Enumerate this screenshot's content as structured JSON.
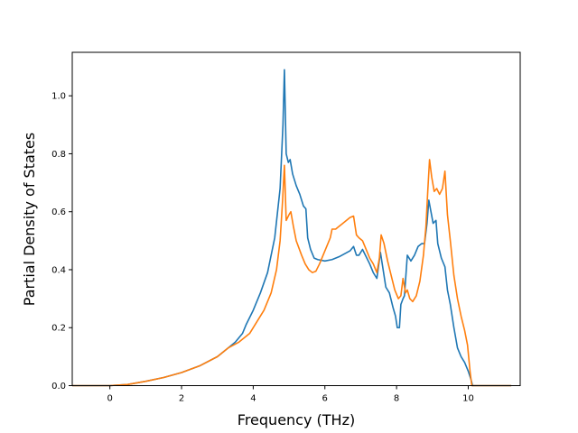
{
  "chart_data": {
    "type": "line",
    "title": "",
    "xlabel": "Frequency (THz)",
    "ylabel": "Partial Density of States",
    "xlim": [
      -1.05,
      11.45
    ],
    "ylim": [
      0,
      1.15
    ],
    "xticks": [
      0,
      2,
      4,
      6,
      8,
      10
    ],
    "xtick_labels": [
      "0",
      "2",
      "4",
      "6",
      "8",
      "10"
    ],
    "yticks": [
      0.0,
      0.2,
      0.4,
      0.6,
      0.8,
      1.0
    ],
    "ytick_labels": [
      "0.0",
      "0.2",
      "0.4",
      "0.6",
      "0.8",
      "1.0"
    ],
    "grid": false,
    "legend": "none",
    "series": [
      {
        "color": "#1f77b4",
        "points": [
          [
            -1.05,
            0
          ],
          [
            0,
            0
          ],
          [
            0.5,
            0.004
          ],
          [
            1,
            0.015
          ],
          [
            1.5,
            0.028
          ],
          [
            2,
            0.045
          ],
          [
            2.5,
            0.068
          ],
          [
            3,
            0.1
          ],
          [
            3.3,
            0.13
          ],
          [
            3.5,
            0.15
          ],
          [
            3.7,
            0.18
          ],
          [
            3.8,
            0.21
          ],
          [
            4,
            0.26
          ],
          [
            4.2,
            0.32
          ],
          [
            4.4,
            0.39
          ],
          [
            4.6,
            0.51
          ],
          [
            4.75,
            0.68
          ],
          [
            4.83,
            0.9
          ],
          [
            4.87,
            1.09
          ],
          [
            4.92,
            0.8
          ],
          [
            4.98,
            0.77
          ],
          [
            5.03,
            0.78
          ],
          [
            5.1,
            0.73
          ],
          [
            5.2,
            0.69
          ],
          [
            5.3,
            0.66
          ],
          [
            5.4,
            0.62
          ],
          [
            5.47,
            0.61
          ],
          [
            5.52,
            0.51
          ],
          [
            5.6,
            0.47
          ],
          [
            5.7,
            0.44
          ],
          [
            5.8,
            0.435
          ],
          [
            6,
            0.43
          ],
          [
            6.2,
            0.435
          ],
          [
            6.4,
            0.445
          ],
          [
            6.55,
            0.455
          ],
          [
            6.7,
            0.465
          ],
          [
            6.8,
            0.48
          ],
          [
            6.88,
            0.45
          ],
          [
            6.95,
            0.45
          ],
          [
            7.05,
            0.47
          ],
          [
            7.15,
            0.445
          ],
          [
            7.25,
            0.42
          ],
          [
            7.35,
            0.39
          ],
          [
            7.45,
            0.37
          ],
          [
            7.55,
            0.46
          ],
          [
            7.6,
            0.42
          ],
          [
            7.7,
            0.34
          ],
          [
            7.8,
            0.32
          ],
          [
            7.9,
            0.27
          ],
          [
            7.97,
            0.24
          ],
          [
            8.02,
            0.2
          ],
          [
            8.08,
            0.2
          ],
          [
            8.12,
            0.28
          ],
          [
            8.18,
            0.3
          ],
          [
            8.22,
            0.31
          ],
          [
            8.3,
            0.45
          ],
          [
            8.4,
            0.43
          ],
          [
            8.5,
            0.45
          ],
          [
            8.6,
            0.48
          ],
          [
            8.7,
            0.49
          ],
          [
            8.78,
            0.49
          ],
          [
            8.85,
            0.56
          ],
          [
            8.9,
            0.64
          ],
          [
            8.96,
            0.6
          ],
          [
            9.02,
            0.56
          ],
          [
            9.1,
            0.57
          ],
          [
            9.15,
            0.49
          ],
          [
            9.25,
            0.44
          ],
          [
            9.35,
            0.41
          ],
          [
            9.42,
            0.33
          ],
          [
            9.5,
            0.28
          ],
          [
            9.6,
            0.2
          ],
          [
            9.7,
            0.13
          ],
          [
            9.8,
            0.1
          ],
          [
            9.9,
            0.08
          ],
          [
            10.0,
            0.05
          ],
          [
            10.08,
            0.02
          ],
          [
            10.12,
            0
          ],
          [
            11.2,
            0
          ]
        ]
      },
      {
        "color": "#ff7f0e",
        "points": [
          [
            -1.05,
            0
          ],
          [
            0,
            0
          ],
          [
            0.5,
            0.004
          ],
          [
            1,
            0.015
          ],
          [
            1.5,
            0.028
          ],
          [
            2,
            0.045
          ],
          [
            2.5,
            0.068
          ],
          [
            3,
            0.1
          ],
          [
            3.3,
            0.13
          ],
          [
            3.6,
            0.15
          ],
          [
            3.9,
            0.18
          ],
          [
            4.1,
            0.22
          ],
          [
            4.3,
            0.26
          ],
          [
            4.5,
            0.32
          ],
          [
            4.65,
            0.4
          ],
          [
            4.75,
            0.5
          ],
          [
            4.82,
            0.64
          ],
          [
            4.87,
            0.76
          ],
          [
            4.92,
            0.57
          ],
          [
            5.0,
            0.59
          ],
          [
            5.05,
            0.6
          ],
          [
            5.12,
            0.55
          ],
          [
            5.2,
            0.5
          ],
          [
            5.35,
            0.45
          ],
          [
            5.45,
            0.42
          ],
          [
            5.55,
            0.4
          ],
          [
            5.65,
            0.39
          ],
          [
            5.75,
            0.395
          ],
          [
            5.85,
            0.42
          ],
          [
            5.95,
            0.45
          ],
          [
            6.05,
            0.48
          ],
          [
            6.15,
            0.51
          ],
          [
            6.2,
            0.54
          ],
          [
            6.3,
            0.54
          ],
          [
            6.4,
            0.55
          ],
          [
            6.5,
            0.56
          ],
          [
            6.6,
            0.57
          ],
          [
            6.7,
            0.58
          ],
          [
            6.8,
            0.585
          ],
          [
            6.88,
            0.52
          ],
          [
            6.95,
            0.51
          ],
          [
            7.05,
            0.5
          ],
          [
            7.15,
            0.47
          ],
          [
            7.25,
            0.44
          ],
          [
            7.35,
            0.42
          ],
          [
            7.45,
            0.39
          ],
          [
            7.52,
            0.44
          ],
          [
            7.57,
            0.52
          ],
          [
            7.65,
            0.49
          ],
          [
            7.75,
            0.43
          ],
          [
            7.85,
            0.38
          ],
          [
            7.95,
            0.33
          ],
          [
            8.05,
            0.3
          ],
          [
            8.12,
            0.31
          ],
          [
            8.18,
            0.37
          ],
          [
            8.25,
            0.32
          ],
          [
            8.3,
            0.33
          ],
          [
            8.37,
            0.3
          ],
          [
            8.45,
            0.29
          ],
          [
            8.55,
            0.31
          ],
          [
            8.65,
            0.36
          ],
          [
            8.75,
            0.45
          ],
          [
            8.82,
            0.55
          ],
          [
            8.87,
            0.67
          ],
          [
            8.92,
            0.78
          ],
          [
            8.98,
            0.72
          ],
          [
            9.05,
            0.67
          ],
          [
            9.12,
            0.68
          ],
          [
            9.2,
            0.66
          ],
          [
            9.28,
            0.68
          ],
          [
            9.35,
            0.74
          ],
          [
            9.42,
            0.59
          ],
          [
            9.5,
            0.5
          ],
          [
            9.6,
            0.38
          ],
          [
            9.7,
            0.3
          ],
          [
            9.8,
            0.24
          ],
          [
            9.9,
            0.19
          ],
          [
            9.98,
            0.14
          ],
          [
            10.05,
            0.05
          ],
          [
            10.1,
            0
          ],
          [
            11.2,
            0
          ]
        ]
      }
    ]
  }
}
